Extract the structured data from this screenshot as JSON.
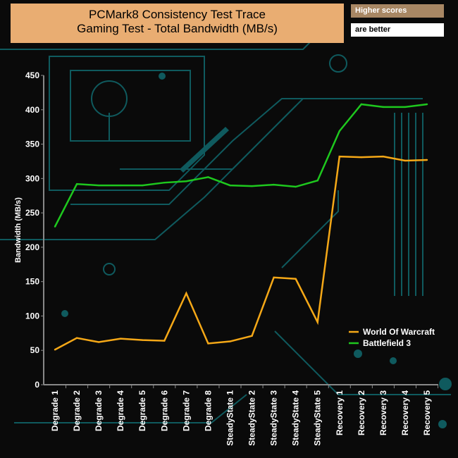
{
  "header": {
    "title_line1": "PCMark8 Consistency Test Trace",
    "title_line2": "Gaming Test - Total Bandwidth (MB/s)",
    "note1": "Higher scores",
    "note2": "are better"
  },
  "chart_data": {
    "type": "line",
    "title": "PCMark8 Consistency Test Trace Gaming Test - Total Bandwidth (MB/s)",
    "ylabel": "Bandwidth (MB/s)",
    "ylim": [
      0,
      450
    ],
    "yticks": [
      0,
      50,
      100,
      150,
      200,
      250,
      300,
      350,
      400,
      450
    ],
    "grid": false,
    "legend": "bottom-right",
    "categories": [
      "Degrade 1",
      "Degrade 2",
      "Degrade 3",
      "Degrade 4",
      "Degrade 5",
      "Degrade 6",
      "Degrade 7",
      "Degrade 8",
      "SteadyState 1",
      "SteadyState 2",
      "SteadyState 3",
      "SteadyState 4",
      "SteadyState 5",
      "Recovery 1",
      "Recovery 2",
      "Recovery 3",
      "Recovery 4",
      "Recovery 5"
    ],
    "series": [
      {
        "name": "World Of Warcraft",
        "color": "#f5a817",
        "values": [
          51,
          68,
          62,
          67,
          65,
          64,
          133,
          60,
          63,
          71,
          156,
          154,
          91,
          332,
          331,
          332,
          326,
          327
        ]
      },
      {
        "name": "Battlefield 3",
        "color": "#1ec81e",
        "values": [
          230,
          292,
          290,
          290,
          290,
          294,
          296,
          302,
          290,
          289,
          291,
          288,
          297,
          369,
          408,
          404,
          404,
          408
        ]
      }
    ]
  }
}
